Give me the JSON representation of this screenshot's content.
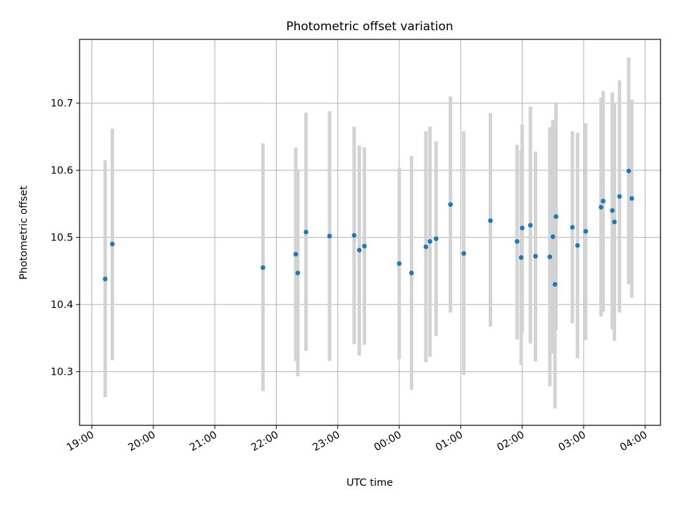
{
  "chart_data": {
    "type": "scatter",
    "title": "Photometric offset variation",
    "xlabel": "UTC time",
    "ylabel": "Photometric offset",
    "x_is_time": true,
    "xlim": [
      "18:48",
      "04:15"
    ],
    "ylim": [
      10.22,
      10.795
    ],
    "grid": true,
    "marker_color": "#1f77b4",
    "errorbar_color": "#d3d3d3",
    "x_tick_labels": [
      "19:00",
      "20:00",
      "21:00",
      "22:00",
      "23:00",
      "00:00",
      "01:00",
      "02:00",
      "03:00",
      "04:00"
    ],
    "y_ticks": [
      10.3,
      10.4,
      10.5,
      10.6,
      10.7
    ],
    "y_tick_labels": [
      "10.3",
      "10.4",
      "10.5",
      "10.6",
      "10.7"
    ],
    "series": [
      {
        "points": [
          {
            "t": "19:13",
            "y": 10.438,
            "lo": 10.262,
            "hi": 10.615
          },
          {
            "t": "19:20",
            "y": 10.49,
            "lo": 10.317,
            "hi": 10.662
          },
          {
            "t": "21:47",
            "y": 10.455,
            "lo": 10.271,
            "hi": 10.64
          },
          {
            "t": "22:19",
            "y": 10.475,
            "lo": 10.316,
            "hi": 10.634
          },
          {
            "t": "22:21",
            "y": 10.447,
            "lo": 10.293,
            "hi": 10.6
          },
          {
            "t": "22:29",
            "y": 10.508,
            "lo": 10.331,
            "hi": 10.686
          },
          {
            "t": "22:52",
            "y": 10.502,
            "lo": 10.316,
            "hi": 10.688
          },
          {
            "t": "23:16",
            "y": 10.503,
            "lo": 10.341,
            "hi": 10.665
          },
          {
            "t": "23:21",
            "y": 10.481,
            "lo": 10.324,
            "hi": 10.637
          },
          {
            "t": "23:26",
            "y": 10.487,
            "lo": 10.34,
            "hi": 10.634
          },
          {
            "t": "00:00",
            "y": 10.461,
            "lo": 10.319,
            "hi": 10.604
          },
          {
            "t": "00:12",
            "y": 10.447,
            "lo": 10.273,
            "hi": 10.621
          },
          {
            "t": "00:26",
            "y": 10.486,
            "lo": 10.314,
            "hi": 10.658
          },
          {
            "t": "00:30",
            "y": 10.494,
            "lo": 10.322,
            "hi": 10.665
          },
          {
            "t": "00:36",
            "y": 10.498,
            "lo": 10.353,
            "hi": 10.643
          },
          {
            "t": "00:50",
            "y": 10.549,
            "lo": 10.388,
            "hi": 10.71
          },
          {
            "t": "01:03",
            "y": 10.476,
            "lo": 10.295,
            "hi": 10.658
          },
          {
            "t": "01:29",
            "y": 10.525,
            "lo": 10.367,
            "hi": 10.685
          },
          {
            "t": "01:55",
            "y": 10.494,
            "lo": 10.348,
            "hi": 10.638
          },
          {
            "t": "01:59",
            "y": 10.47,
            "lo": 10.31,
            "hi": 10.63
          },
          {
            "t": "02:00",
            "y": 10.514,
            "lo": 10.358,
            "hi": 10.668
          },
          {
            "t": "02:08",
            "y": 10.518,
            "lo": 10.342,
            "hi": 10.695
          },
          {
            "t": "02:13",
            "y": 10.472,
            "lo": 10.315,
            "hi": 10.628
          },
          {
            "t": "02:27",
            "y": 10.471,
            "lo": 10.278,
            "hi": 10.664
          },
          {
            "t": "02:30",
            "y": 10.501,
            "lo": 10.327,
            "hi": 10.675
          },
          {
            "t": "02:32",
            "y": 10.43,
            "lo": 10.245,
            "hi": 10.615
          },
          {
            "t": "02:33",
            "y": 10.531,
            "lo": 10.362,
            "hi": 10.7
          },
          {
            "t": "02:49",
            "y": 10.515,
            "lo": 10.372,
            "hi": 10.658
          },
          {
            "t": "02:54",
            "y": 10.488,
            "lo": 10.32,
            "hi": 10.656
          },
          {
            "t": "03:02",
            "y": 10.509,
            "lo": 10.347,
            "hi": 10.67
          },
          {
            "t": "03:17",
            "y": 10.545,
            "lo": 10.382,
            "hi": 10.708
          },
          {
            "t": "03:19",
            "y": 10.554,
            "lo": 10.389,
            "hi": 10.718
          },
          {
            "t": "03:28",
            "y": 10.54,
            "lo": 10.363,
            "hi": 10.716
          },
          {
            "t": "03:30",
            "y": 10.523,
            "lo": 10.346,
            "hi": 10.7
          },
          {
            "t": "03:35",
            "y": 10.561,
            "lo": 10.388,
            "hi": 10.734
          },
          {
            "t": "03:44",
            "y": 10.599,
            "lo": 10.43,
            "hi": 10.768
          },
          {
            "t": "03:47",
            "y": 10.558,
            "lo": 10.41,
            "hi": 10.705
          }
        ]
      }
    ]
  }
}
